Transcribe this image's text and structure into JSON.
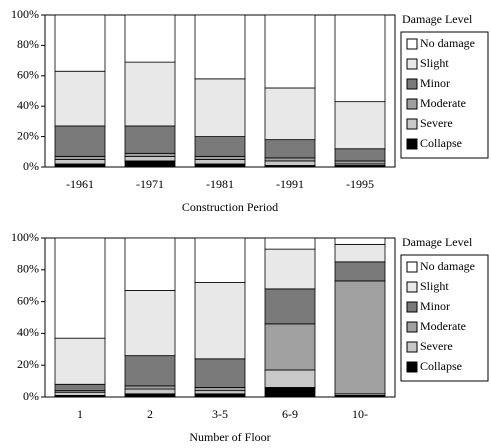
{
  "chart_data": [
    {
      "type": "bar",
      "stacked": true,
      "x_label": "Construction Period",
      "legend_title": "Damage Level",
      "categories": [
        "-1961",
        "-1971",
        "-1981",
        "-1991",
        "-1995"
      ],
      "series": [
        {
          "name": "Collapse",
          "color": "#000000",
          "values": [
            2,
            4,
            2,
            1,
            1
          ]
        },
        {
          "name": "Severe",
          "color": "#c8c8c8",
          "values": [
            3,
            3,
            3,
            3,
            1
          ]
        },
        {
          "name": "Moderate",
          "color": "#a0a0a0",
          "values": [
            2,
            2,
            2,
            2,
            2
          ]
        },
        {
          "name": "Minor",
          "color": "#7a7a7a",
          "values": [
            20,
            18,
            13,
            12,
            8
          ]
        },
        {
          "name": "Slight",
          "color": "#e8e8e8",
          "values": [
            36,
            42,
            38,
            34,
            31
          ]
        },
        {
          "name": "No damage",
          "color": "#ffffff",
          "values": [
            37,
            31,
            42,
            48,
            57
          ]
        }
      ],
      "ylim": [
        0,
        100
      ],
      "yticks": [
        {
          "value": 0,
          "label": "0%"
        },
        {
          "value": 20,
          "label": "20%"
        },
        {
          "value": 40,
          "label": "40%"
        },
        {
          "value": 60,
          "label": "60%"
        },
        {
          "value": 80,
          "label": "80%"
        },
        {
          "value": 100,
          "label": "100%"
        }
      ]
    },
    {
      "type": "bar",
      "stacked": true,
      "x_label": "Number of Floor",
      "legend_title": "Damage Level",
      "categories": [
        "1",
        "2",
        "3-5",
        "6-9",
        "10-"
      ],
      "series": [
        {
          "name": "Collapse",
          "color": "#000000",
          "values": [
            1,
            2,
            2,
            6,
            1
          ]
        },
        {
          "name": "Severe",
          "color": "#c8c8c8",
          "values": [
            2,
            3,
            2,
            11,
            1
          ]
        },
        {
          "name": "Moderate",
          "color": "#a0a0a0",
          "values": [
            1,
            2,
            2,
            29,
            71
          ]
        },
        {
          "name": "Minor",
          "color": "#7a7a7a",
          "values": [
            4,
            19,
            18,
            22,
            12
          ]
        },
        {
          "name": "Slight",
          "color": "#e8e8e8",
          "values": [
            29,
            41,
            48,
            25,
            11
          ]
        },
        {
          "name": "No damage",
          "color": "#ffffff",
          "values": [
            63,
            33,
            28,
            7,
            4
          ]
        }
      ],
      "ylim": [
        0,
        100
      ],
      "yticks": [
        {
          "value": 0,
          "label": "0%"
        },
        {
          "value": 20,
          "label": "20%"
        },
        {
          "value": 40,
          "label": "40%"
        },
        {
          "value": 60,
          "label": "60%"
        },
        {
          "value": 80,
          "label": "80%"
        },
        {
          "value": 100,
          "label": "100%"
        }
      ]
    }
  ]
}
